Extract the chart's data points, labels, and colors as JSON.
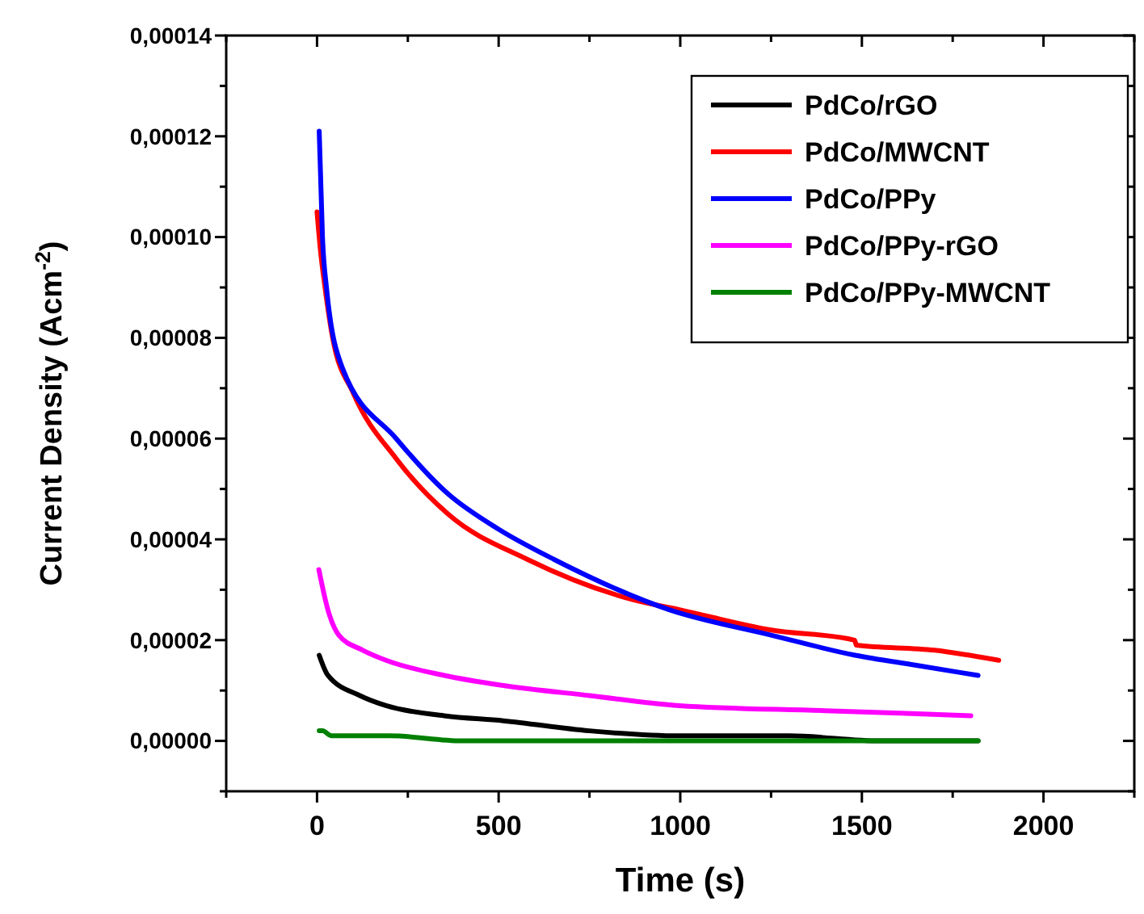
{
  "chart_data": {
    "type": "line",
    "xlabel": "Time (s)",
    "ylabel": "Current Density (Acm$^{-2}$)",
    "xlim": [
      -250,
      2250
    ],
    "ylim": [
      -1e-05,
      0.00014
    ],
    "xticks": [
      {
        "value": -250,
        "label": null
      },
      {
        "value": 0,
        "label": "0"
      },
      {
        "value": 250,
        "label": null
      },
      {
        "value": 500,
        "label": "500"
      },
      {
        "value": 750,
        "label": null
      },
      {
        "value": 1000,
        "label": "1000"
      },
      {
        "value": 1250,
        "label": null
      },
      {
        "value": 1500,
        "label": "1500"
      },
      {
        "value": 1750,
        "label": null
      },
      {
        "value": 2000,
        "label": "2000"
      },
      {
        "value": 2250,
        "label": null
      }
    ],
    "yticks": [
      {
        "value": -1e-05,
        "label": null
      },
      {
        "value": 0,
        "label": "0,00000"
      },
      {
        "value": 1e-05,
        "label": null
      },
      {
        "value": 2e-05,
        "label": "0,00002"
      },
      {
        "value": 3e-05,
        "label": null
      },
      {
        "value": 4e-05,
        "label": "0,00004"
      },
      {
        "value": 5e-05,
        "label": null
      },
      {
        "value": 6e-05,
        "label": "0,00006"
      },
      {
        "value": 7e-05,
        "label": null
      },
      {
        "value": 8e-05,
        "label": "0,00008"
      },
      {
        "value": 9e-05,
        "label": null
      },
      {
        "value": 0.0001,
        "label": "0,00010"
      },
      {
        "value": 0.00011,
        "label": null
      },
      {
        "value": 0.00012,
        "label": "0,00012"
      },
      {
        "value": 0.00013,
        "label": null
      },
      {
        "value": 0.00014,
        "label": "0,00014"
      }
    ],
    "grid": false,
    "legend": "top right",
    "line_style": "solid",
    "series": [
      {
        "name": "PdCo/rGO",
        "color": "#000000",
        "x": [
          6,
          30,
          118,
          190,
          350,
          513,
          750,
          997,
          1300,
          1550,
          1820
        ],
        "values": [
          1.7e-05,
          1.3e-05,
          9e-06,
          7e-06,
          5e-06,
          4e-06,
          2e-06,
          1e-06,
          1e-06,
          0,
          0
        ]
      },
      {
        "name": "PdCo/MWCNT",
        "color": "#ff0000",
        "x": [
          0,
          10,
          22,
          43,
          100,
          218,
          361,
          580,
          871,
          1000,
          1250,
          1480,
          1485,
          1700,
          1877
        ],
        "values": [
          0.000105,
          9.7e-05,
          9e-05,
          8e-05,
          6.9e-05,
          5.6e-05,
          4.5e-05,
          3.6e-05,
          2.8e-05,
          2.6e-05,
          2.2e-05,
          2e-05,
          1.9e-05,
          1.8e-05,
          1.6e-05
        ]
      },
      {
        "name": "PdCo/PPy",
        "color": "#0000ff",
        "x": [
          6,
          15,
          26,
          70,
          218,
          361,
          500,
          653,
          971,
          1250,
          1481,
          1650,
          1820
        ],
        "values": [
          0.000121,
          0.0001,
          9e-05,
          7.4e-05,
          6e-05,
          4.9e-05,
          4.2e-05,
          3.6e-05,
          2.6e-05,
          2.1e-05,
          1.7e-05,
          1.5e-05,
          1.3e-05
        ]
      },
      {
        "name": "PdCo/PPy-rGO",
        "color": "#ff00ff",
        "x": [
          5,
          30,
          60,
          126,
          190,
          350,
          513,
          750,
          997,
          1400,
          1800
        ],
        "values": [
          3.4e-05,
          2.6e-05,
          2.1e-05,
          1.8e-05,
          1.6e-05,
          1.3e-05,
          1.1e-05,
          9e-06,
          7e-06,
          6e-06,
          5e-06
        ]
      },
      {
        "name": "PdCo/PPy-MWCNT",
        "color": "#008000",
        "x": [
          6,
          15,
          40,
          200,
          400,
          800,
          1200,
          1820
        ],
        "values": [
          2e-06,
          2e-06,
          1e-06,
          1e-06,
          0,
          0,
          0,
          0
        ]
      }
    ]
  }
}
